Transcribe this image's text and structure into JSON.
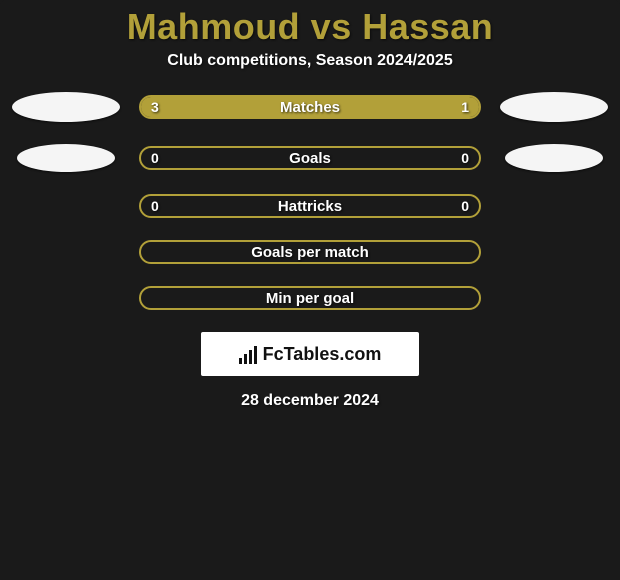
{
  "background_color": "#1a1a1a",
  "accent_color": "#b2a039",
  "text_color": "#ffffff",
  "card_color": "#1a1a1a",
  "title": "Mahmoud vs Hassan",
  "title_color": "#b2a039",
  "title_fontsize": 36,
  "subtitle": "Club competitions, Season 2024/2025",
  "subtitle_fontsize": 16,
  "bar_border_color": "#b2a039",
  "bar_fill_color": "#b2a039",
  "bar_track_width": 342,
  "bar_track_height": 24,
  "oval_color": "#f5f5f5",
  "rows": [
    {
      "label": "Matches",
      "left": "3",
      "right": "1",
      "left_fill_pct": 73,
      "right_fill_pct": 27,
      "show_ovals": true
    },
    {
      "label": "Goals",
      "left": "0",
      "right": "0",
      "left_fill_pct": 0,
      "right_fill_pct": 0,
      "show_ovals": true
    },
    {
      "label": "Hattricks",
      "left": "0",
      "right": "0",
      "left_fill_pct": 0,
      "right_fill_pct": 0,
      "show_ovals": false
    },
    {
      "label": "Goals per match",
      "left": "",
      "right": "",
      "left_fill_pct": 0,
      "right_fill_pct": 0,
      "show_ovals": false
    },
    {
      "label": "Min per goal",
      "left": "",
      "right": "",
      "left_fill_pct": 0,
      "right_fill_pct": 0,
      "show_ovals": false
    }
  ],
  "logo_text": "FcTables.com",
  "logo_bg": "#ffffff",
  "date": "28 december 2024"
}
